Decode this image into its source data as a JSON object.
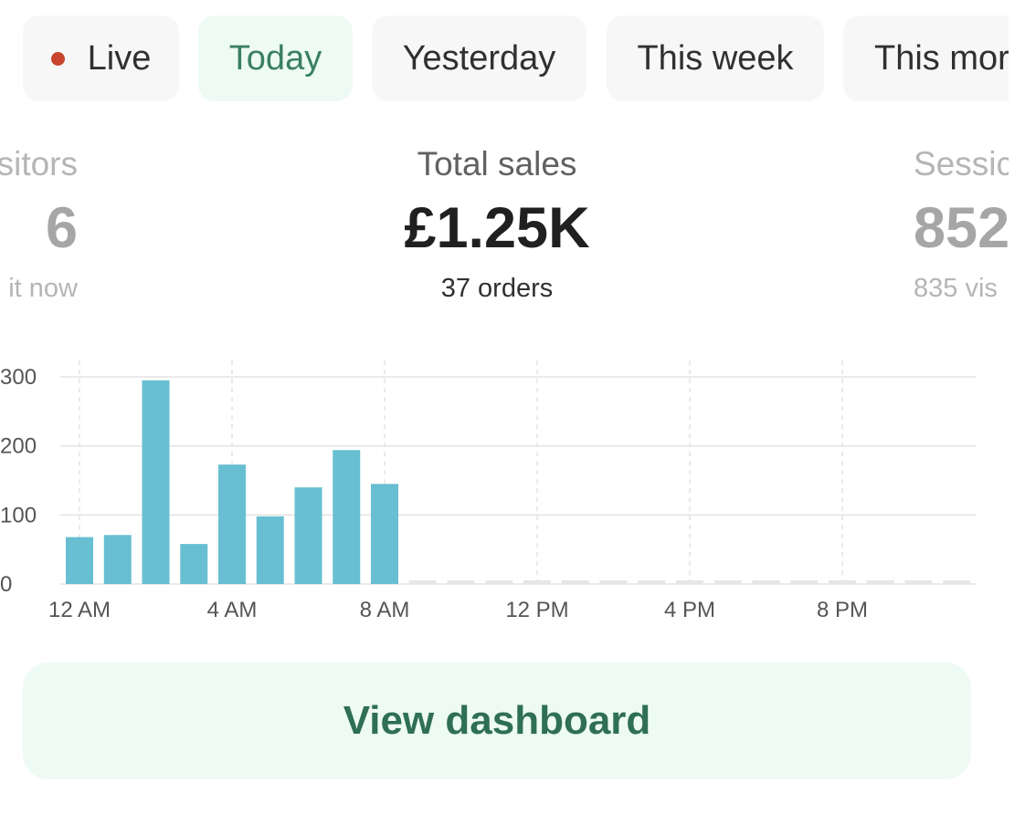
{
  "tabs": [
    {
      "label": "Live",
      "active": false,
      "has_dot": true
    },
    {
      "label": "Today",
      "active": true
    },
    {
      "label": "Yesterday",
      "active": false
    },
    {
      "label": "This week",
      "active": false
    },
    {
      "label": "This mor",
      "active": false
    }
  ],
  "metrics": {
    "left": {
      "label": "sitors",
      "value": "6",
      "sub": "it now"
    },
    "center": {
      "label": "Total sales",
      "value": "£1.25K",
      "sub": "37 orders"
    },
    "right": {
      "label": "Sessic",
      "value": "852",
      "sub": "835 vis"
    }
  },
  "chart_data": {
    "type": "bar",
    "x_tick_labels": [
      "12 AM",
      "4 AM",
      "8 AM",
      "12 PM",
      "4 PM",
      "8 PM"
    ],
    "y_tick_labels": [
      "300",
      "200",
      "100",
      "0"
    ],
    "ylim": [
      0,
      300
    ],
    "hours": 24,
    "values": [
      68,
      71,
      295,
      58,
      173,
      98,
      140,
      194,
      145
    ],
    "bar_color": "#68bfd1",
    "placeholder_color": "#e6e6e6",
    "grid": true
  },
  "cta": {
    "label": "View dashboard"
  },
  "colors": {
    "accent": "#2f6f54",
    "active_tab_bg": "#eefaf4",
    "live_dot": "#c9442e"
  }
}
